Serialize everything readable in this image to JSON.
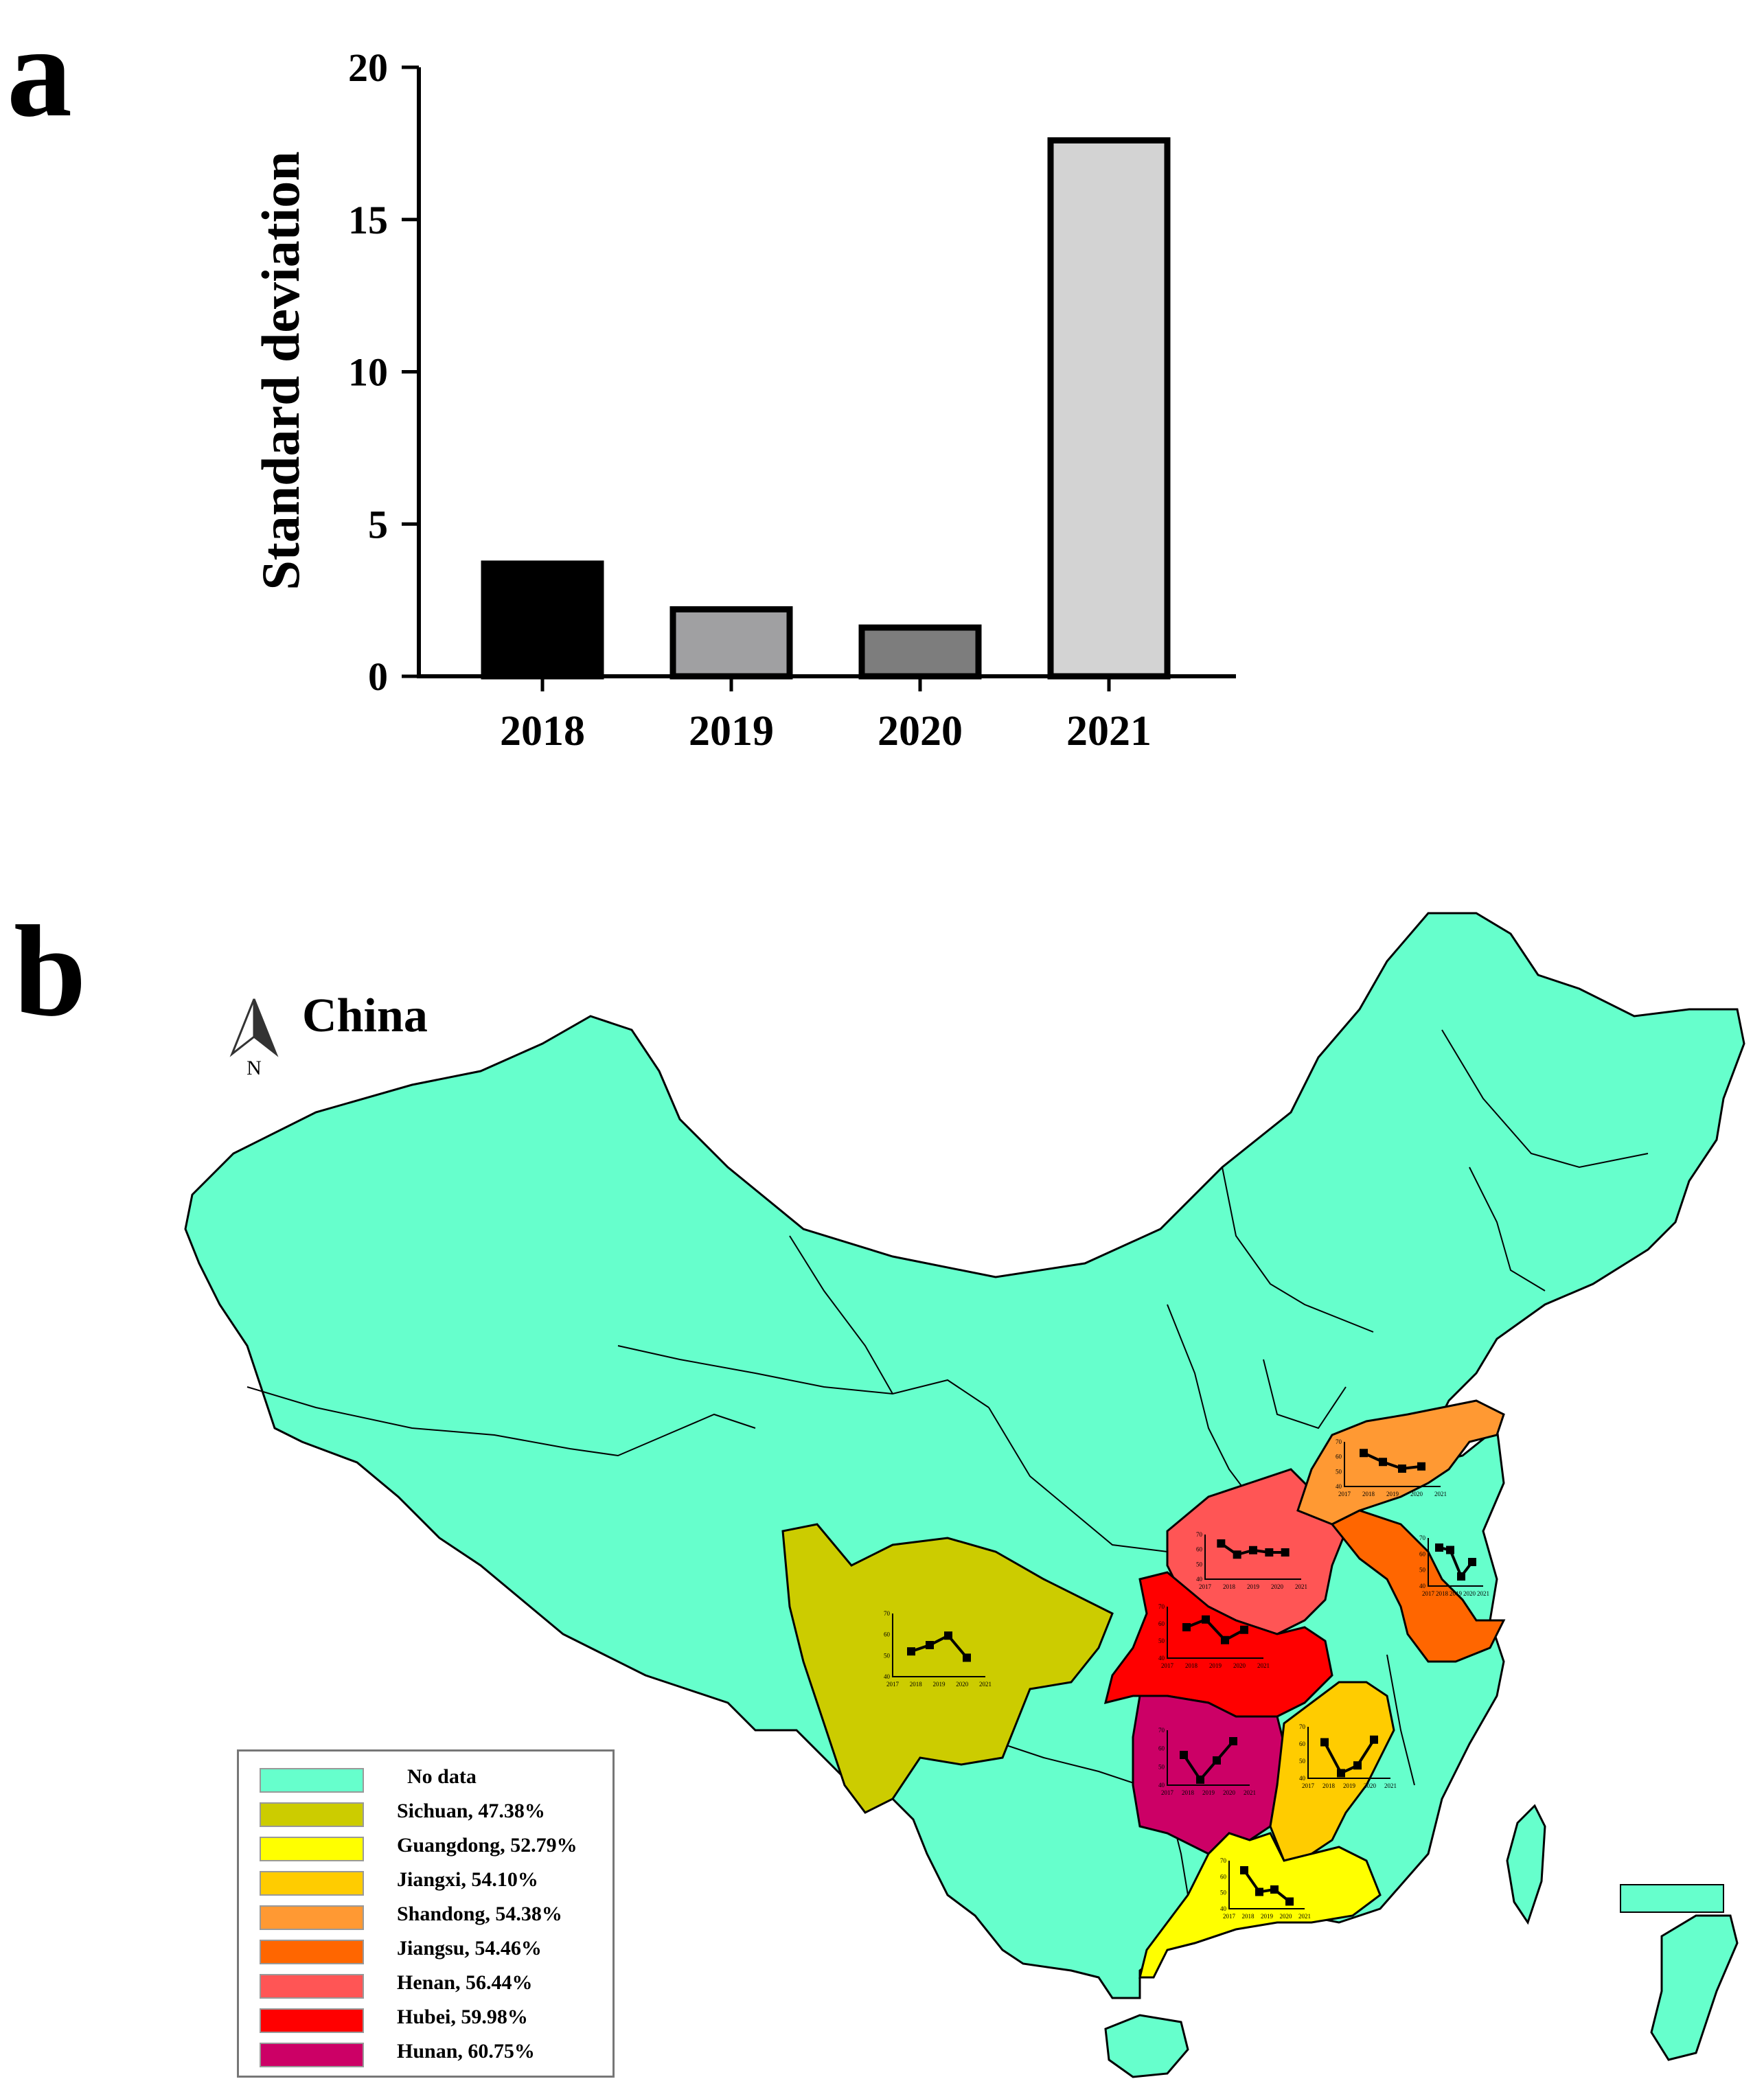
{
  "panel_a": {
    "letter": "a",
    "chart_data": {
      "type": "bar",
      "categories": [
        "2018",
        "2019",
        "2020",
        "2021"
      ],
      "values": [
        3.7,
        2.2,
        1.6,
        17.6
      ],
      "colors": [
        "#000000",
        "#a0a0a2",
        "#7d7d7d",
        "#d3d3d3"
      ],
      "ylabel": "Standard deviation",
      "xlabel": "",
      "ylim": [
        0,
        20
      ],
      "yticks": [
        "0",
        "5",
        "10",
        "15",
        "20"
      ],
      "grid": false
    }
  },
  "panel_b": {
    "letter": "b",
    "title": "China",
    "compass_label": "N",
    "legend": [
      {
        "label": "No data",
        "color": "#66ffcc"
      },
      {
        "label": "Sichuan, 47.38%",
        "color": "#cccc00"
      },
      {
        "label": "Guangdong, 52.79%",
        "color": "#ffff00"
      },
      {
        "label": "Jiangxi, 54.10%",
        "color": "#ffcc00"
      },
      {
        "label": "Shandong, 54.38%",
        "color": "#ff9933"
      },
      {
        "label": "Jiangsu, 54.46%",
        "color": "#ff6600"
      },
      {
        "label": "Henan, 56.44%",
        "color": "#ff5555"
      },
      {
        "label": "Hubei, 59.98%",
        "color": "#ff0000"
      },
      {
        "label": "Hunan, 60.75%",
        "color": "#cc0066"
      }
    ],
    "inset_chart_years": [
      "2017",
      "2018",
      "2019",
      "2020",
      "2021"
    ],
    "inset_chart_yticks": [
      "40",
      "50",
      "60",
      "70"
    ]
  }
}
